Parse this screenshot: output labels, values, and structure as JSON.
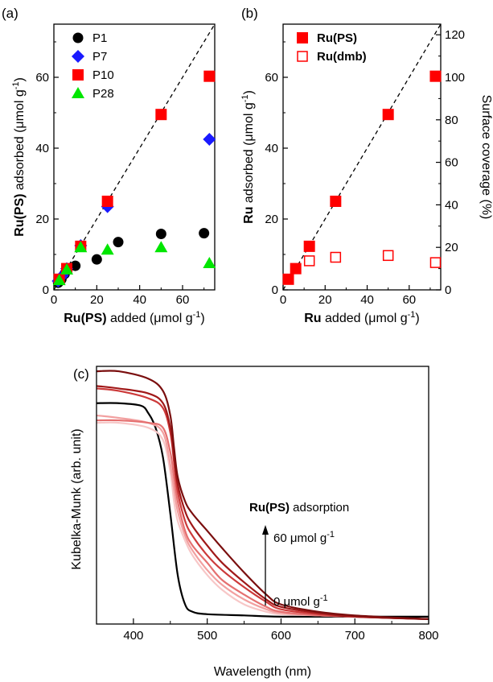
{
  "chart_data": [
    {
      "panel": "(a)",
      "type": "scatter",
      "xlabel": "Ru(PS) added (μmol g-1)",
      "ylabel": "Ru(PS) adsorbed (μmol g-1)",
      "xlim": [
        0,
        75
      ],
      "ylim": [
        0,
        75
      ],
      "xticks": [
        "0",
        "20",
        "40",
        "60"
      ],
      "yticks": [
        "0",
        "20",
        "40",
        "60"
      ],
      "legend_position": "top-left",
      "reference_line": "dashed diagonal y = x",
      "series": [
        {
          "name": "P1",
          "marker": "circle",
          "color": "#000000",
          "x": [
            2,
            3.5,
            5,
            10,
            20,
            30,
            50,
            70
          ],
          "y": [
            2,
            3,
            4.5,
            6.8,
            8.6,
            13.5,
            15.8,
            16
          ]
        },
        {
          "name": "P7",
          "marker": "diamond",
          "color": "#1a1aff",
          "x": [
            2,
            4,
            6,
            12.5,
            25,
            72.5
          ],
          "y": [
            2.5,
            4,
            6,
            12.5,
            23.5,
            42.5
          ]
        },
        {
          "name": "P10",
          "marker": "square",
          "color": "#ff0000",
          "x": [
            2.5,
            6,
            12.5,
            25,
            50,
            72.5
          ],
          "y": [
            3,
            6,
            12.3,
            25,
            49.5,
            60.3
          ]
        },
        {
          "name": "P28",
          "marker": "triangle",
          "color": "#00e600",
          "x": [
            2.5,
            6,
            12.5,
            25,
            50,
            72.5
          ],
          "y": [
            2.7,
            5.7,
            12,
            11.3,
            12,
            7.5
          ]
        }
      ]
    },
    {
      "panel": "(b)",
      "type": "scatter",
      "xlabel": "Ru added (μmol g-1)",
      "ylabel": "Ru adsorbed (μmol g-1)",
      "y2label": "Surface coverage (%)",
      "xlim": [
        0,
        75
      ],
      "ylim": [
        0,
        75
      ],
      "y2lim": [
        0,
        125
      ],
      "xticks": [
        "0",
        "20",
        "40",
        "60"
      ],
      "yticks": [
        "0",
        "20",
        "40",
        "60"
      ],
      "y2ticks": [
        "0",
        "20",
        "40",
        "60",
        "80",
        "100",
        "120"
      ],
      "legend_position": "top-left",
      "reference_line": "dashed diagonal y = x",
      "series": [
        {
          "name": "Ru(PS)",
          "marker": "filled square",
          "color": "#ff0000",
          "x": [
            2.5,
            6,
            12.5,
            25,
            50,
            72.5
          ],
          "y": [
            3,
            6,
            12.3,
            25,
            49.5,
            60.3
          ]
        },
        {
          "name": "Ru(dmb)",
          "marker": "open square",
          "color": "#ff0000",
          "x": [
            12.5,
            25,
            50,
            72.5
          ],
          "y": [
            8.2,
            9.2,
            9.7,
            7.7
          ]
        }
      ]
    },
    {
      "panel": "(c)",
      "type": "line",
      "xlabel": "Wavelength (nm)",
      "ylabel": "Kubelka-Munk (arb. unit)",
      "xlim": [
        350,
        800
      ],
      "ylim": [
        0,
        1.05
      ],
      "xticks": [
        "400",
        "500",
        "600",
        "700",
        "800"
      ],
      "annotation": {
        "title_bold": "Ru(PS)",
        "title_rest": " adsorption",
        "top_label": "60 μmol g-1",
        "bottom_label": "0 μmol g-1"
      },
      "series": [
        {
          "color": "#000000",
          "x": [
            350,
            380,
            410,
            420,
            430,
            440,
            450,
            460,
            470,
            480,
            500,
            550,
            600,
            700,
            800
          ],
          "y": [
            0.9,
            0.9,
            0.89,
            0.86,
            0.8,
            0.68,
            0.45,
            0.2,
            0.08,
            0.05,
            0.04,
            0.035,
            0.03,
            0.03,
            0.03
          ]
        },
        {
          "color": "#f7c7c7",
          "x": [
            350,
            380,
            420,
            440,
            450,
            455,
            460,
            470,
            480,
            500,
            520,
            550,
            580,
            600,
            650,
            700,
            800
          ],
          "y": [
            0.82,
            0.82,
            0.8,
            0.75,
            0.62,
            0.5,
            0.42,
            0.34,
            0.28,
            0.2,
            0.14,
            0.08,
            0.05,
            0.04,
            0.035,
            0.03,
            0.02
          ]
        },
        {
          "color": "#f2a0a0",
          "x": [
            350,
            380,
            420,
            440,
            450,
            455,
            460,
            470,
            480,
            500,
            520,
            550,
            580,
            600,
            650,
            700,
            800
          ],
          "y": [
            0.85,
            0.84,
            0.82,
            0.78,
            0.65,
            0.55,
            0.46,
            0.36,
            0.3,
            0.22,
            0.16,
            0.1,
            0.06,
            0.045,
            0.035,
            0.03,
            0.02
          ]
        },
        {
          "color": "#e57070",
          "x": [
            350,
            380,
            420,
            440,
            450,
            455,
            460,
            470,
            480,
            500,
            520,
            550,
            580,
            600,
            650,
            700,
            800
          ],
          "y": [
            0.83,
            0.83,
            0.82,
            0.8,
            0.7,
            0.6,
            0.5,
            0.38,
            0.32,
            0.25,
            0.18,
            0.12,
            0.07,
            0.05,
            0.035,
            0.03,
            0.02
          ]
        },
        {
          "color": "#cc3a3a",
          "x": [
            350,
            380,
            420,
            440,
            450,
            455,
            460,
            470,
            480,
            500,
            520,
            550,
            580,
            600,
            650,
            700,
            800
          ],
          "y": [
            0.96,
            0.95,
            0.92,
            0.88,
            0.78,
            0.66,
            0.54,
            0.42,
            0.36,
            0.28,
            0.22,
            0.15,
            0.09,
            0.06,
            0.04,
            0.03,
            0.02
          ]
        },
        {
          "color": "#a01818",
          "x": [
            350,
            380,
            420,
            440,
            450,
            455,
            460,
            470,
            480,
            500,
            520,
            550,
            580,
            600,
            650,
            700,
            800
          ],
          "y": [
            0.97,
            0.96,
            0.94,
            0.9,
            0.8,
            0.68,
            0.57,
            0.46,
            0.4,
            0.32,
            0.25,
            0.17,
            0.1,
            0.07,
            0.045,
            0.03,
            0.02
          ]
        },
        {
          "color": "#7a0e0e",
          "x": [
            350,
            380,
            420,
            440,
            450,
            455,
            460,
            470,
            480,
            500,
            520,
            550,
            580,
            600,
            650,
            700,
            800
          ],
          "y": [
            1.03,
            1.03,
            1.0,
            0.95,
            0.85,
            0.72,
            0.6,
            0.5,
            0.45,
            0.38,
            0.31,
            0.21,
            0.12,
            0.08,
            0.05,
            0.035,
            0.02
          ]
        }
      ]
    }
  ],
  "icons": {
    "annotation_arrow": "up-arrow-icon"
  }
}
